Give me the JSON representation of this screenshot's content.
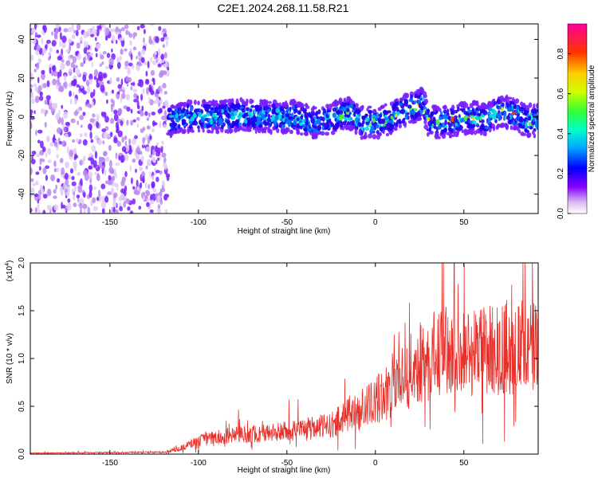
{
  "title": "C2E1.2024.268.11.58.R21",
  "chart_data": [
    {
      "type": "heatmap",
      "xlabel": "Height of straight line (km)",
      "ylabel": "Frequency (Hz)",
      "xlim": [
        -195,
        92
      ],
      "ylim": [
        -50,
        48
      ],
      "xticks": [
        -150,
        -100,
        -50,
        0,
        50
      ],
      "yticks": [
        -40,
        -20,
        0,
        20,
        40
      ],
      "colorbar": {
        "label": "Normalized spectral amplitude",
        "ticks": [
          "0.0",
          "0.2",
          "0.4",
          "0.6",
          "0.8"
        ],
        "range": [
          0,
          0.95
        ]
      },
      "ridge": {
        "x": [
          -117,
          -105,
          -90,
          -75,
          -60,
          -45,
          -35,
          -25,
          -15,
          -8,
          0,
          8,
          15,
          22,
          27,
          30,
          35,
          45,
          55,
          62,
          70,
          78,
          85,
          92
        ],
        "freq": [
          -2,
          0,
          0,
          1,
          0,
          0,
          -3,
          -1,
          2,
          -3,
          -3,
          -1,
          3,
          5,
          7,
          -2,
          -3,
          -2,
          0,
          -2,
          3,
          2,
          -2,
          -2
        ]
      },
      "noise_region_x": [
        -195,
        -117
      ]
    },
    {
      "type": "line",
      "xlabel": "Height of straight line (km)",
      "ylabel": "SNR (10 * v/v)",
      "y_multiplier_label": "(x10",
      "y_multiplier_exp": "4",
      "xlim": [
        -195,
        92
      ],
      "ylim": [
        0,
        2.0
      ],
      "xticks": [
        -150,
        -100,
        -50,
        0,
        50
      ],
      "yticks": [
        "0.0",
        "0.5",
        "1.0",
        "1.5",
        "2.0"
      ],
      "series": [
        {
          "color": "#e8302a",
          "trend_x": [
            -195,
            -120,
            -110,
            -100,
            -80,
            -60,
            -40,
            -25,
            -15,
            -5,
            5,
            15,
            25,
            35,
            45,
            60,
            75,
            92
          ],
          "trend_y": [
            0.01,
            0.02,
            0.06,
            0.14,
            0.2,
            0.22,
            0.26,
            0.3,
            0.42,
            0.5,
            0.62,
            0.8,
            0.95,
            1.05,
            1.05,
            1.08,
            1.12,
            1.1
          ]
        }
      ]
    }
  ]
}
